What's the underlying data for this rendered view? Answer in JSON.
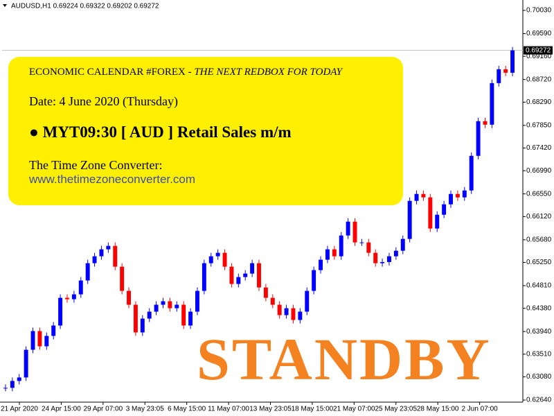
{
  "chart_data": {
    "type": "candlestick",
    "title": "AUDUSD,H1  0.69224 0.69322 0.69202 0.69272",
    "values": [
      0.62872,
      0.63003,
      0.63069,
      0.63594,
      0.63949,
      0.6366,
      0.63857,
      0.64054,
      0.64579,
      0.64553,
      0.64645,
      0.64908,
      0.65236,
      0.65367,
      0.65499,
      0.65564,
      0.6517,
      0.64711,
      0.64448,
      0.63923,
      0.64185,
      0.64317,
      0.64448,
      0.64514,
      0.64382,
      0.64448,
      0.64054,
      0.64317,
      0.64711,
      0.65236,
      0.65367,
      0.65433,
      0.6517,
      0.64842,
      0.64973,
      0.65039,
      0.65236,
      0.64776,
      0.64579,
      0.64448,
      0.64251,
      0.64382,
      0.64159,
      0.64317,
      0.64711,
      0.65105,
      0.65302,
      0.65499,
      0.65367,
      0.65761,
      0.66024,
      0.6563,
      0.6563,
      0.65433,
      0.65236,
      0.65258,
      0.65367,
      0.65472,
      0.65696,
      0.66418,
      0.66549,
      0.66484,
      0.65893,
      0.66155,
      0.66352,
      0.66549,
      0.66484,
      0.66615,
      0.67272,
      0.67929,
      0.67863,
      0.68651,
      0.68914,
      0.68848,
      0.69272
    ],
    "up_color": "#0000ff",
    "down_color": "#ff0000",
    "ylim": [
      0.62601,
      0.70201
    ],
    "yticks": [
      {
        "value": 0.7003,
        "label": "0.70030"
      },
      {
        "value": 0.6959,
        "label": "0.69590"
      },
      {
        "value": 0.6916,
        "label": "0.69160"
      },
      {
        "value": 0.6872,
        "label": "0.68720"
      },
      {
        "value": 0.6829,
        "label": "0.68290"
      },
      {
        "value": 0.6785,
        "label": "0.67850"
      },
      {
        "value": 0.6742,
        "label": "0.67420"
      },
      {
        "value": 0.6699,
        "label": "0.66990"
      },
      {
        "value": 0.6655,
        "label": "0.66550"
      },
      {
        "value": 0.6612,
        "label": "0.66120"
      },
      {
        "value": 0.6568,
        "label": "0.65680"
      },
      {
        "value": 0.6525,
        "label": "0.65250"
      },
      {
        "value": 0.6481,
        "label": "0.64810"
      },
      {
        "value": 0.6438,
        "label": "0.64380"
      },
      {
        "value": 0.6394,
        "label": "0.63940"
      },
      {
        "value": 0.6351,
        "label": "0.63510"
      },
      {
        "value": 0.6308,
        "label": "0.63080"
      },
      {
        "value": 0.6264,
        "label": "0.62640"
      }
    ],
    "last_price": {
      "value": 0.69272,
      "label": "0.69272"
    },
    "xtick_labels": [
      "21 Apr 2020",
      "24 Apr 15:00",
      "29 Apr 07:00",
      "3 May 23:05",
      "6 May 15:00",
      "11 May 07:00",
      "13 May 23:05",
      "18 May 15:00",
      "21 May 07:00",
      "25 May 23:05",
      "28 May 15:00",
      "2 Jun 07:00"
    ]
  },
  "notice": {
    "title_plain": "ECONOMIC CALENDAR #FOREX - ",
    "title_italic": "THE NEXT REDBOX FOR TODAY",
    "date": "Date: 4 June 2020 (Thursday)",
    "event": "● MYT09:30 [ AUD ] Retail Sales m/m",
    "converter_label": "The Time Zone Converter:",
    "converter_url": "www.thetimezoneconverter.com"
  },
  "stamp": "STANDBY"
}
